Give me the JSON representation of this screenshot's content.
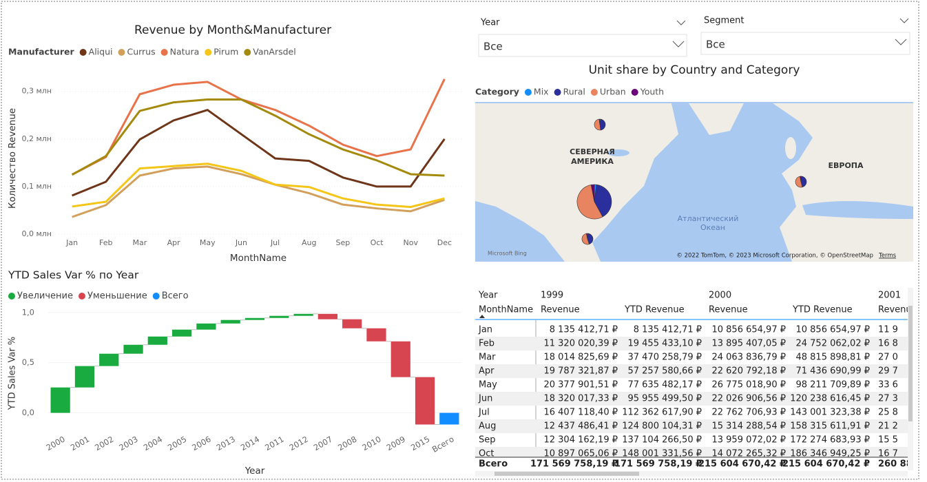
{
  "chart_data": [
    {
      "type": "line",
      "title": "Revenue by Month&Manufacturer",
      "legend_title": "Manufacturer",
      "x_label": "MonthName",
      "y_label": "Количество Revenue",
      "categories": [
        "Jan",
        "Feb",
        "Mar",
        "Apr",
        "May",
        "Jun",
        "Jul",
        "Aug",
        "Sep",
        "Oct",
        "Nov",
        "Dec"
      ],
      "series": [
        {
          "name": "Aliqui",
          "color": "#6e3518",
          "values": [
            0.081,
            0.11,
            0.199,
            0.239,
            0.261,
            0.21,
            0.159,
            0.154,
            0.119,
            0.1,
            0.1,
            0.2
          ]
        },
        {
          "name": "Currus",
          "color": "#d3a05c",
          "values": [
            0.036,
            0.061,
            0.123,
            0.138,
            0.142,
            0.126,
            0.104,
            0.086,
            0.062,
            0.054,
            0.048,
            0.072
          ]
        },
        {
          "name": "Natura",
          "color": "#e8734a",
          "values": [
            0.125,
            0.162,
            0.294,
            0.314,
            0.32,
            0.283,
            0.261,
            0.228,
            0.188,
            0.164,
            0.178,
            0.326
          ]
        },
        {
          "name": "Pirum",
          "color": "#f5c518",
          "values": [
            0.058,
            0.068,
            0.138,
            0.143,
            0.148,
            0.133,
            0.104,
            0.099,
            0.075,
            0.062,
            0.057,
            0.075
          ]
        },
        {
          "name": "VanArsdel",
          "color": "#a48a0c",
          "values": [
            0.125,
            0.164,
            0.259,
            0.277,
            0.283,
            0.283,
            0.249,
            0.21,
            0.178,
            0.155,
            0.126,
            0.123
          ]
        }
      ],
      "ylim": [
        0,
        0.33
      ],
      "yticks": [
        {
          "value": 0,
          "label": "0,0 млн"
        },
        {
          "value": 0.1,
          "label": "0,1 млн"
        },
        {
          "value": 0.2,
          "label": "0,2 млн"
        },
        {
          "value": 0.3,
          "label": "0,3 млн"
        }
      ]
    },
    {
      "type": "waterfall",
      "title": "YTD Sales Var % по Year",
      "x_label": "Year",
      "y_label": "YTD Sales Var %",
      "legend": [
        {
          "name": "Увеличение",
          "color": "#1aab40"
        },
        {
          "name": "Уменьшение",
          "color": "#d64550"
        },
        {
          "name": "Всего",
          "color": "#118dff"
        }
      ],
      "categories": [
        "2000",
        "2001",
        "2002",
        "2003",
        "2004",
        "2005",
        "2006",
        "2013",
        "2014",
        "2011",
        "2012",
        "2007",
        "2008",
        "2010",
        "2009",
        "2015"
      ],
      "values": [
        0.253,
        0.213,
        0.123,
        0.089,
        0.082,
        0.069,
        0.061,
        0.035,
        0.02,
        0.021,
        0.02,
        -0.054,
        -0.09,
        -0.13,
        -0.356,
        -0.472
      ],
      "total": {
        "category": "Всего",
        "value": -0.116
      },
      "ylim": [
        -0.14,
        1.06
      ],
      "yticks": [
        {
          "value": 0,
          "label": "0,0"
        },
        {
          "value": 0.5,
          "label": "0,5"
        },
        {
          "value": 1,
          "label": "1,0"
        }
      ]
    }
  ],
  "slicers": [
    {
      "label": "Year",
      "value": "Все"
    },
    {
      "label": "Segment",
      "value": "Все"
    }
  ],
  "map": {
    "title": "Unit share by Country and Category",
    "legend_title": "Category",
    "categories": [
      "Mix",
      "Rural",
      "Urban",
      "Youth"
    ],
    "colors": [
      "#118dff",
      "#2b2f9e",
      "#e8845f",
      "#6b007b"
    ],
    "labels": [
      "СЕВЕРНАЯ",
      "АМЕРИКА",
      "ЕВРОПА",
      "Атлантический",
      "Океан"
    ],
    "attribution": "© 2022 TomTom, © 2023 Microsoft Corporation, © OpenStreetMap",
    "terms": "Terms",
    "bing": "Microsoft Bing",
    "pies": [
      {
        "values": [
          3,
          45,
          50,
          2
        ]
      },
      {
        "values": [
          2,
          40,
          55,
          3
        ]
      },
      {
        "values": [
          3,
          42,
          52,
          3
        ]
      },
      {
        "values": [
          2,
          44,
          51,
          3
        ]
      }
    ]
  },
  "table": {
    "header1": [
      "Year",
      "1999",
      "2000",
      "2001"
    ],
    "header2": [
      "MonthName",
      "Revenue",
      "YTD Revenue",
      "Revenue",
      "YTD Revenue",
      "Revenu"
    ],
    "rows": [
      [
        "Jan",
        "8 135 412,71 ₽",
        "8 135 412,71 ₽",
        "10 856 654,97 ₽",
        "10 856 654,97 ₽",
        "11 9"
      ],
      [
        "Feb",
        "11 320 020,39 ₽",
        "19 455 433,10 ₽",
        "13 895 407,05 ₽",
        "24 752 062,02 ₽",
        "16 8"
      ],
      [
        "Mar",
        "18 014 825,69 ₽",
        "37 470 258,79 ₽",
        "24 063 836,79 ₽",
        "48 815 898,81 ₽",
        "27 0"
      ],
      [
        "Apr",
        "19 787 321,87 ₽",
        "57 257 580,66 ₽",
        "22 620 792,18 ₽",
        "71 436 690,99 ₽",
        "29 7"
      ],
      [
        "May",
        "20 377 901,51 ₽",
        "77 635 482,17 ₽",
        "26 775 018,90 ₽",
        "98 211 709,89 ₽",
        "33 6"
      ],
      [
        "Jun",
        "18 320 017,33 ₽",
        "95 955 499,50 ₽",
        "22 026 906,56 ₽",
        "120 238 616,45 ₽",
        "27 3"
      ],
      [
        "Jul",
        "16 407 118,40 ₽",
        "112 362 617,90 ₽",
        "22 762 706,93 ₽",
        "143 001 323,38 ₽",
        "25 8"
      ],
      [
        "Aug",
        "12 437 486,41 ₽",
        "124 800 104,31 ₽",
        "15 314 288,54 ₽",
        "158 315 611,91 ₽",
        "21 2"
      ],
      [
        "Sep",
        "12 304 162,19 ₽",
        "137 104 266,50 ₽",
        "13 959 072,02 ₽",
        "172 274 683,93 ₽",
        "15 5"
      ],
      [
        "Oct",
        "10 897 065,06 ₽",
        "148 001 331,56 ₽",
        "14 072 265,32 ₽",
        "186 346 949,25 ₽",
        "16 7"
      ]
    ],
    "total": [
      "Всего",
      "171 569 758,19 ₽",
      "171 569 758,19 ₽",
      "215 604 670,42 ₽",
      "215 604 670,42 ₽",
      "260 88"
    ]
  }
}
